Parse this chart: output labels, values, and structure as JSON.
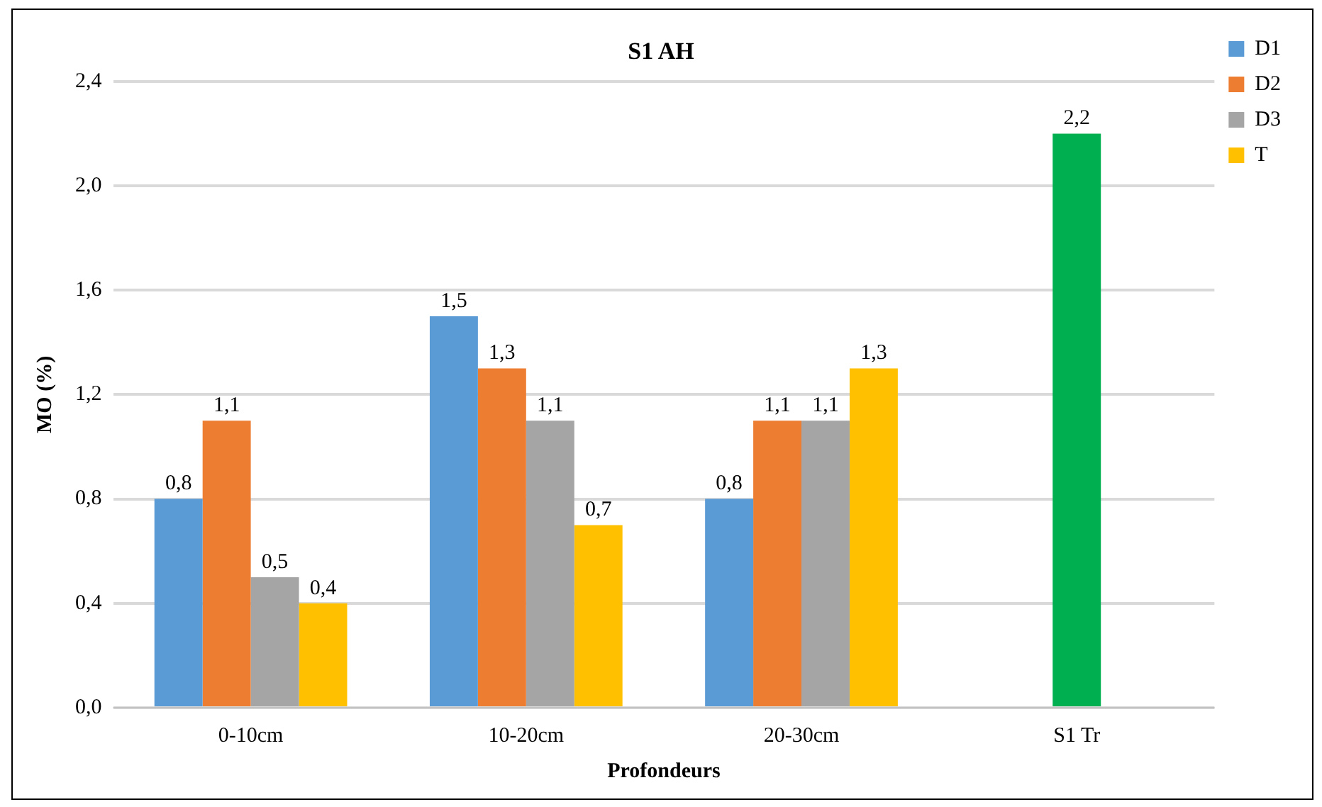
{
  "chart_data": {
    "type": "bar",
    "title": "S1 AH",
    "xlabel": "Profondeurs",
    "ylabel": "MO (%)",
    "categories": [
      "0-10cm",
      "10-20cm",
      "20-30cm",
      "S1 Tr"
    ],
    "series": [
      {
        "name": "D1",
        "color": "#5b9bd5",
        "values": [
          0.8,
          1.5,
          0.8,
          null
        ],
        "value_labels": [
          "0,8",
          "1,5",
          "0,8",
          null
        ]
      },
      {
        "name": "D2",
        "color": "#ed7d31",
        "values": [
          1.1,
          1.3,
          1.1,
          null
        ],
        "value_labels": [
          "1,1",
          "1,3",
          "1,1",
          null
        ]
      },
      {
        "name": "D3",
        "color": "#a5a5a5",
        "values": [
          0.5,
          1.1,
          1.1,
          null
        ],
        "value_labels": [
          "0,5",
          "1,1",
          "1,1",
          null
        ]
      },
      {
        "name": "T",
        "color": "#ffc000",
        "values": [
          0.4,
          0.7,
          1.3,
          null
        ],
        "value_labels": [
          "0,4",
          "0,7",
          "1,3",
          null
        ]
      },
      {
        "color": "#00b050",
        "values": [
          null,
          null,
          null,
          2.2
        ],
        "value_labels": [
          null,
          null,
          null,
          "2,2"
        ]
      }
    ],
    "ylim": [
      0,
      2.4
    ],
    "yticks": [
      {
        "value": 0,
        "label": "0,0"
      },
      {
        "value": 0.4,
        "label": "0,4"
      },
      {
        "value": 0.8,
        "label": "0,8"
      },
      {
        "value": 1.2,
        "label": "1,2"
      },
      {
        "value": 1.6,
        "label": "1,6"
      },
      {
        "value": 2.0,
        "label": "2,0"
      },
      {
        "value": 2.4,
        "label": "2,4"
      }
    ],
    "grid": "y",
    "legend": "top right"
  }
}
